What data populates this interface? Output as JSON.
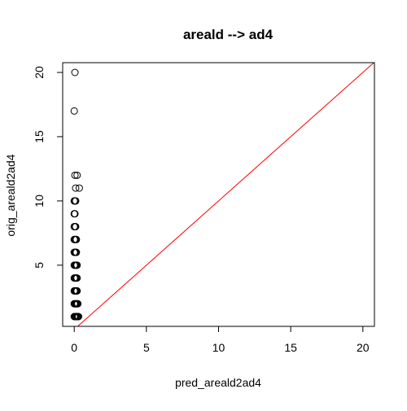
{
  "chart_data": {
    "type": "scatter",
    "title": "areald --> ad4",
    "xlabel": "pred_areald2ad4",
    "ylabel": "orig_areald2ad4",
    "xlim": [
      -0.8,
      20.8
    ],
    "ylim": [
      0.24,
      20.76
    ],
    "x_ticks": [
      0,
      5,
      10,
      15,
      20
    ],
    "y_ticks": [
      5,
      10,
      15,
      20
    ],
    "grid": false,
    "reference_line": {
      "slope": 1,
      "intercept": 0,
      "color": "#ff0000"
    },
    "point_color": "#000000",
    "points": [
      {
        "x": 0.05,
        "y": 20
      },
      {
        "x": 0.0,
        "y": 17
      },
      {
        "x": 0.05,
        "y": 12
      },
      {
        "x": 0.2,
        "y": 12
      },
      {
        "x": 0.1,
        "y": 11
      },
      {
        "x": 0.35,
        "y": 11
      },
      {
        "x": 0.0,
        "y": 10
      },
      {
        "x": 0.05,
        "y": 10
      },
      {
        "x": 0.1,
        "y": 10
      },
      {
        "x": 0.0,
        "y": 9
      },
      {
        "x": 0.05,
        "y": 9
      },
      {
        "x": 0.0,
        "y": 8
      },
      {
        "x": 0.05,
        "y": 8
      },
      {
        "x": 0.1,
        "y": 8
      },
      {
        "x": 0.0,
        "y": 7
      },
      {
        "x": 0.05,
        "y": 7
      },
      {
        "x": 0.1,
        "y": 7
      },
      {
        "x": 0.15,
        "y": 7
      },
      {
        "x": 0.0,
        "y": 6
      },
      {
        "x": 0.05,
        "y": 6
      },
      {
        "x": 0.1,
        "y": 6
      },
      {
        "x": 0.15,
        "y": 6
      },
      {
        "x": 0.0,
        "y": 5
      },
      {
        "x": 0.05,
        "y": 5
      },
      {
        "x": 0.1,
        "y": 5
      },
      {
        "x": 0.15,
        "y": 5
      },
      {
        "x": 0.2,
        "y": 5
      },
      {
        "x": 0.0,
        "y": 4
      },
      {
        "x": 0.05,
        "y": 4
      },
      {
        "x": 0.1,
        "y": 4
      },
      {
        "x": 0.15,
        "y": 4
      },
      {
        "x": 0.2,
        "y": 4
      },
      {
        "x": 0.0,
        "y": 3
      },
      {
        "x": 0.05,
        "y": 3
      },
      {
        "x": 0.1,
        "y": 3
      },
      {
        "x": 0.15,
        "y": 3
      },
      {
        "x": 0.2,
        "y": 3
      },
      {
        "x": 0.0,
        "y": 2
      },
      {
        "x": 0.05,
        "y": 2
      },
      {
        "x": 0.1,
        "y": 2
      },
      {
        "x": 0.15,
        "y": 2
      },
      {
        "x": 0.2,
        "y": 2
      },
      {
        "x": 0.25,
        "y": 2
      },
      {
        "x": 0.0,
        "y": 1
      },
      {
        "x": 0.05,
        "y": 1
      },
      {
        "x": 0.1,
        "y": 1
      },
      {
        "x": 0.15,
        "y": 1
      },
      {
        "x": 0.2,
        "y": 1
      },
      {
        "x": 0.25,
        "y": 1
      },
      {
        "x": 0.3,
        "y": 1
      }
    ]
  }
}
